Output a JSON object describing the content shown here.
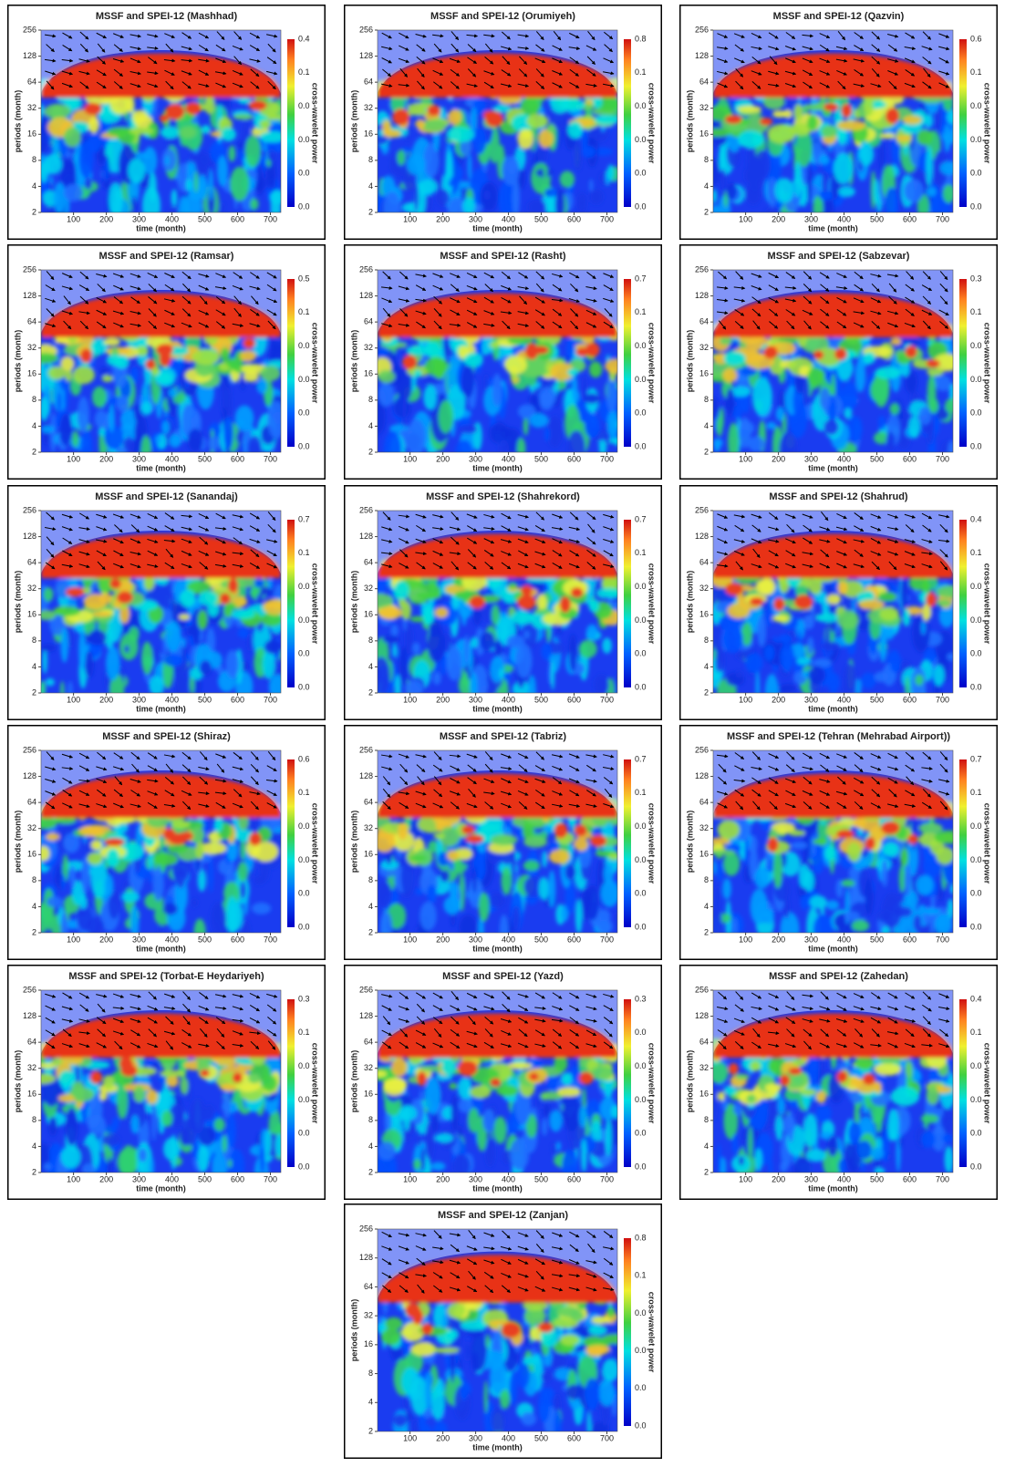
{
  "chart_data": [
    {
      "type": "heatmap",
      "title": "MSSF and SPEI-12 (Mashhad)",
      "xlabel": "time (month)",
      "ylabel": "periods (month)",
      "colorbar_label": "cross-wavelet power",
      "xlim": [
        1,
        732
      ],
      "ylim": [
        2,
        256
      ],
      "log_y": true,
      "xticks": [
        100,
        200,
        300,
        400,
        500,
        600,
        700
      ],
      "yticks": [
        2,
        4,
        8,
        16,
        32,
        64,
        128,
        256
      ],
      "colorbar_labels": [
        "0.4",
        "0.1",
        "0.0",
        "0.0",
        "0.0",
        "0.0"
      ]
    },
    {
      "type": "heatmap",
      "title": "MSSF and SPEI-12 (Orumiyeh)",
      "xlabel": "time (month)",
      "ylabel": "periods (month)",
      "colorbar_label": "cross-wavelet power",
      "xlim": [
        1,
        732
      ],
      "ylim": [
        2,
        256
      ],
      "log_y": true,
      "xticks": [
        100,
        200,
        300,
        400,
        500,
        600,
        700
      ],
      "yticks": [
        2,
        4,
        8,
        16,
        32,
        64,
        128,
        256
      ],
      "colorbar_labels": [
        "0.8",
        "0.1",
        "0.0",
        "0.0",
        "0.0",
        "0.0"
      ]
    },
    {
      "type": "heatmap",
      "title": "MSSF and SPEI-12 (Qazvin)",
      "xlabel": "time (month)",
      "ylabel": "periods (month)",
      "colorbar_label": "cross-wavelet power",
      "xlim": [
        1,
        732
      ],
      "ylim": [
        2,
        256
      ],
      "log_y": true,
      "xticks": [
        100,
        200,
        300,
        400,
        500,
        600,
        700
      ],
      "yticks": [
        2,
        4,
        8,
        16,
        32,
        64,
        128,
        256
      ],
      "colorbar_labels": [
        "0.6",
        "0.1",
        "0.0",
        "0.0",
        "0.0",
        "0.0"
      ]
    },
    {
      "type": "heatmap",
      "title": "MSSF and SPEI-12 (Ramsar)",
      "xlabel": "time (month)",
      "ylabel": "periods (month)",
      "colorbar_label": "cross-wavelet power",
      "xlim": [
        1,
        732
      ],
      "ylim": [
        2,
        256
      ],
      "log_y": true,
      "xticks": [
        100,
        200,
        300,
        400,
        500,
        600,
        700
      ],
      "yticks": [
        2,
        4,
        8,
        16,
        32,
        64,
        128,
        256
      ],
      "colorbar_labels": [
        "0.5",
        "0.1",
        "0.0",
        "0.0",
        "0.0",
        "0.0"
      ]
    },
    {
      "type": "heatmap",
      "title": "MSSF and SPEI-12 (Rasht)",
      "xlabel": "time (month)",
      "ylabel": "periods (month)",
      "colorbar_label": "cross-wavelet power",
      "xlim": [
        1,
        732
      ],
      "ylim": [
        2,
        256
      ],
      "log_y": true,
      "xticks": [
        100,
        200,
        300,
        400,
        500,
        600,
        700
      ],
      "yticks": [
        2,
        4,
        8,
        16,
        32,
        64,
        128,
        256
      ],
      "colorbar_labels": [
        "0.7",
        "0.1",
        "0.0",
        "0.0",
        "0.0",
        "0.0"
      ]
    },
    {
      "type": "heatmap",
      "title": "MSSF and SPEI-12 (Sabzevar)",
      "xlabel": "time (month)",
      "ylabel": "periods (month)",
      "colorbar_label": "cross-wavelet power",
      "xlim": [
        1,
        732
      ],
      "ylim": [
        2,
        256
      ],
      "log_y": true,
      "xticks": [
        100,
        200,
        300,
        400,
        500,
        600,
        700
      ],
      "yticks": [
        2,
        4,
        8,
        16,
        32,
        64,
        128,
        256
      ],
      "colorbar_labels": [
        "0.3",
        "0.1",
        "0.0",
        "0.0",
        "0.0",
        "0.0"
      ]
    },
    {
      "type": "heatmap",
      "title": "MSSF and SPEI-12 (Sanandaj)",
      "xlabel": "time (month)",
      "ylabel": "periods (month)",
      "colorbar_label": "cross-wavelet power",
      "xlim": [
        1,
        732
      ],
      "ylim": [
        2,
        256
      ],
      "log_y": true,
      "xticks": [
        100,
        200,
        300,
        400,
        500,
        600,
        700
      ],
      "yticks": [
        2,
        4,
        8,
        16,
        32,
        64,
        128,
        256
      ],
      "colorbar_labels": [
        "0.7",
        "0.1",
        "0.0",
        "0.0",
        "0.0",
        "0.0"
      ]
    },
    {
      "type": "heatmap",
      "title": "MSSF and SPEI-12 (Shahrekord)",
      "xlabel": "time (month)",
      "ylabel": "periods (month)",
      "colorbar_label": "cross-wavelet power",
      "xlim": [
        1,
        732
      ],
      "ylim": [
        2,
        256
      ],
      "log_y": true,
      "xticks": [
        100,
        200,
        300,
        400,
        500,
        600,
        700
      ],
      "yticks": [
        2,
        4,
        8,
        16,
        32,
        64,
        128,
        256
      ],
      "colorbar_labels": [
        "0.7",
        "0.1",
        "0.0",
        "0.0",
        "0.0",
        "0.0"
      ]
    },
    {
      "type": "heatmap",
      "title": "MSSF and SPEI-12 (Shahrud)",
      "xlabel": "time (month)",
      "ylabel": "periods (month)",
      "colorbar_label": "cross-wavelet power",
      "xlim": [
        1,
        732
      ],
      "ylim": [
        2,
        256
      ],
      "log_y": true,
      "xticks": [
        100,
        200,
        300,
        400,
        500,
        600,
        700
      ],
      "yticks": [
        2,
        4,
        8,
        16,
        32,
        64,
        128,
        256
      ],
      "colorbar_labels": [
        "0.4",
        "0.1",
        "0.0",
        "0.0",
        "0.0",
        "0.0"
      ]
    },
    {
      "type": "heatmap",
      "title": "MSSF and SPEI-12 (Shiraz)",
      "xlabel": "time (month)",
      "ylabel": "periods (month)",
      "colorbar_label": "cross-wavelet power",
      "xlim": [
        1,
        732
      ],
      "ylim": [
        2,
        256
      ],
      "log_y": true,
      "xticks": [
        100,
        200,
        300,
        400,
        500,
        600,
        700
      ],
      "yticks": [
        2,
        4,
        8,
        16,
        32,
        64,
        128,
        256
      ],
      "colorbar_labels": [
        "0.6",
        "0.1",
        "0.0",
        "0.0",
        "0.0",
        "0.0"
      ]
    },
    {
      "type": "heatmap",
      "title": "MSSF and SPEI-12 (Tabriz)",
      "xlabel": "time (month)",
      "ylabel": "periods (month)",
      "colorbar_label": "cross-wavelet power",
      "xlim": [
        1,
        732
      ],
      "ylim": [
        2,
        256
      ],
      "log_y": true,
      "xticks": [
        100,
        200,
        300,
        400,
        500,
        600,
        700
      ],
      "yticks": [
        2,
        4,
        8,
        16,
        32,
        64,
        128,
        256
      ],
      "colorbar_labels": [
        "0.7",
        "0.1",
        "0.0",
        "0.0",
        "0.0",
        "0.0"
      ]
    },
    {
      "type": "heatmap",
      "title": "MSSF and SPEI-12 (Tehran (Mehrabad Airport))",
      "xlabel": "time (month)",
      "ylabel": "periods (month)",
      "colorbar_label": "cross-wavelet power",
      "xlim": [
        1,
        732
      ],
      "ylim": [
        2,
        256
      ],
      "log_y": true,
      "xticks": [
        100,
        200,
        300,
        400,
        500,
        600,
        700
      ],
      "yticks": [
        2,
        4,
        8,
        16,
        32,
        64,
        128,
        256
      ],
      "colorbar_labels": [
        "0.7",
        "0.1",
        "0.0",
        "0.0",
        "0.0",
        "0.0"
      ]
    },
    {
      "type": "heatmap",
      "title": "MSSF and SPEI-12 (Torbat-E Heydariyeh)",
      "xlabel": "time (month)",
      "ylabel": "periods (month)",
      "colorbar_label": "cross-wavelet power",
      "xlim": [
        1,
        732
      ],
      "ylim": [
        2,
        256
      ],
      "log_y": true,
      "xticks": [
        100,
        200,
        300,
        400,
        500,
        600,
        700
      ],
      "yticks": [
        2,
        4,
        8,
        16,
        32,
        64,
        128,
        256
      ],
      "colorbar_labels": [
        "0.3",
        "0.1",
        "0.0",
        "0.0",
        "0.0",
        "0.0"
      ]
    },
    {
      "type": "heatmap",
      "title": "MSSF and SPEI-12 (Yazd)",
      "xlabel": "time (month)",
      "ylabel": "periods (month)",
      "colorbar_label": "cross-wavelet power",
      "xlim": [
        1,
        732
      ],
      "ylim": [
        2,
        256
      ],
      "log_y": true,
      "xticks": [
        100,
        200,
        300,
        400,
        500,
        600,
        700
      ],
      "yticks": [
        2,
        4,
        8,
        16,
        32,
        64,
        128,
        256
      ],
      "colorbar_labels": [
        "0.3",
        "0.0",
        "0.0",
        "0.0",
        "0.0",
        "0.0"
      ]
    },
    {
      "type": "heatmap",
      "title": "MSSF and SPEI-12 (Zahedan)",
      "xlabel": "time (month)",
      "ylabel": "periods (month)",
      "colorbar_label": "cross-wavelet power",
      "xlim": [
        1,
        732
      ],
      "ylim": [
        2,
        256
      ],
      "log_y": true,
      "xticks": [
        100,
        200,
        300,
        400,
        500,
        600,
        700
      ],
      "yticks": [
        2,
        4,
        8,
        16,
        32,
        64,
        128,
        256
      ],
      "colorbar_labels": [
        "0.4",
        "0.1",
        "0.0",
        "0.0",
        "0.0",
        "0.0"
      ]
    },
    {
      "type": "heatmap",
      "title": "MSSF and SPEI-12 (Zanjan)",
      "xlabel": "time (month)",
      "ylabel": "periods (month)",
      "colorbar_label": "cross-wavelet power",
      "xlim": [
        1,
        732
      ],
      "ylim": [
        2,
        256
      ],
      "log_y": true,
      "xticks": [
        100,
        200,
        300,
        400,
        500,
        600,
        700
      ],
      "yticks": [
        2,
        4,
        8,
        16,
        32,
        64,
        128,
        256
      ],
      "colorbar_labels": [
        "0.8",
        "0.1",
        "0.0",
        "0.0",
        "0.0",
        "0.0"
      ]
    }
  ]
}
